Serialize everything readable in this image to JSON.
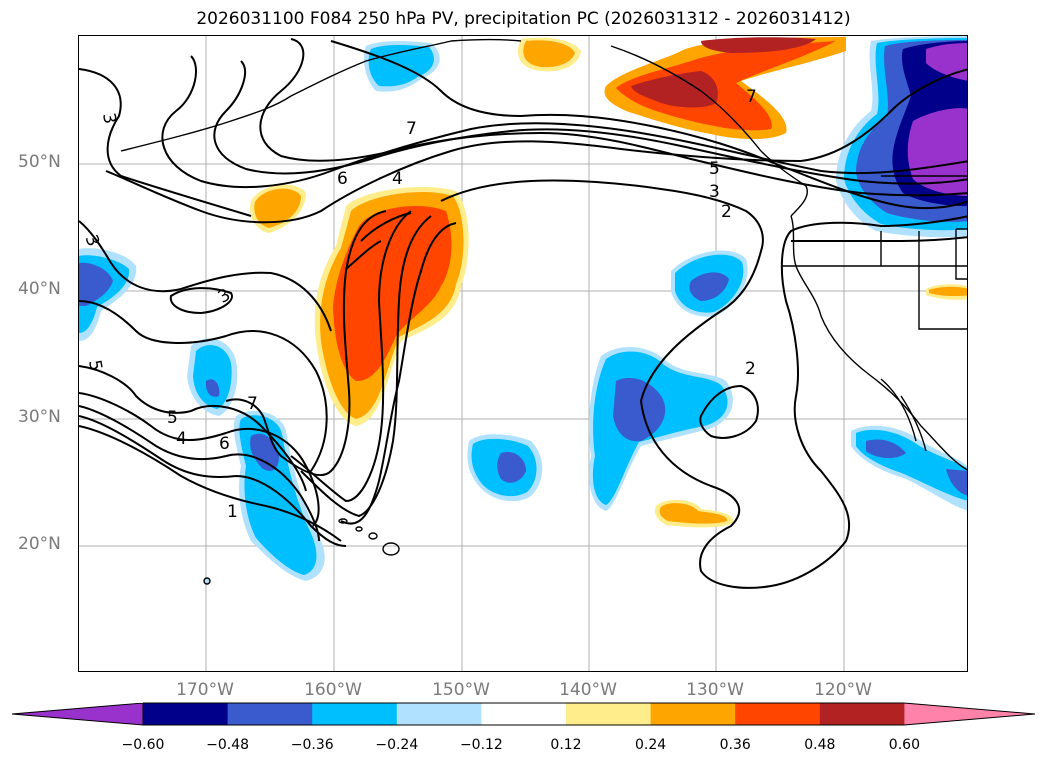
{
  "title": "2026031100 F084 250 hPa PV, precipitation PC (2026031312 - 2026031412)",
  "lat_labels": [
    "50°N",
    "40°N",
    "30°N",
    "20°N"
  ],
  "lon_labels": [
    "170°W",
    "160°W",
    "150°W",
    "140°W",
    "130°W",
    "120°W"
  ],
  "contour_labels": [
    "7",
    "6",
    "4",
    "5",
    "3",
    "2",
    "3",
    "3",
    "5",
    "7",
    "6",
    "5",
    "4",
    "1",
    "2",
    "7"
  ],
  "colorbar": {
    "tick_labels": [
      "−0.60",
      "−0.48",
      "−0.36",
      "−0.24",
      "−0.12",
      "0.12",
      "0.24",
      "0.36",
      "0.48",
      "0.60"
    ],
    "colors": [
      "#9932cc",
      "#00008b",
      "#3a5bcd",
      "#00bfff",
      "#b0e2ff",
      "#ffffff",
      "#ffec8b",
      "#ffa500",
      "#ff4500",
      "#b22222",
      "#ff82ab"
    ]
  },
  "legend_colors": {
    "lightblue": "#b0e2ff",
    "cyan": "#00bfff",
    "blue": "#3a5bcd",
    "navy": "#00008b",
    "purple": "#9932cc",
    "yellow": "#ffec8b",
    "orange": "#ffa500",
    "red": "#ff4500",
    "darkred": "#b22222"
  }
}
